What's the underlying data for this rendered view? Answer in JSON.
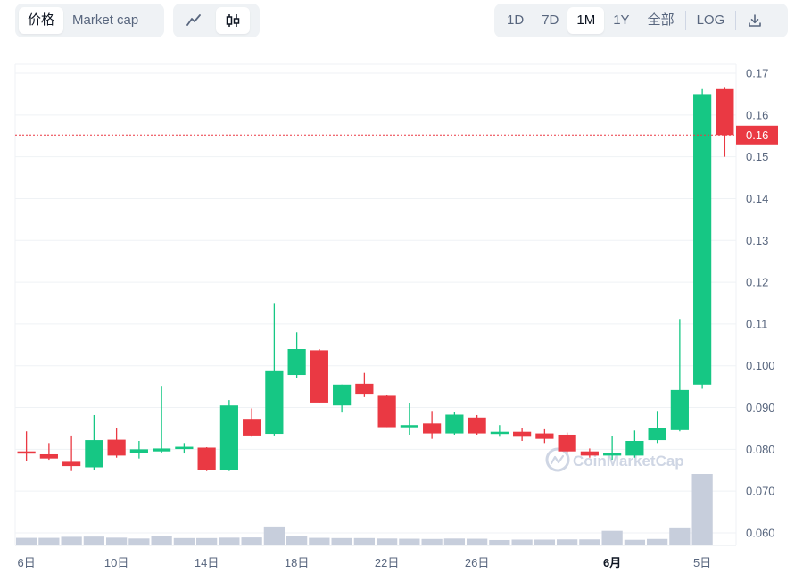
{
  "toolbar": {
    "left_tabs": [
      {
        "label": "价格",
        "active": true
      },
      {
        "label": "Market cap",
        "active": false
      }
    ],
    "chart_types": [
      {
        "icon": "line-chart-icon",
        "active": false
      },
      {
        "icon": "candlestick-icon",
        "active": true
      }
    ],
    "ranges": [
      {
        "label": "1D",
        "active": false
      },
      {
        "label": "7D",
        "active": false
      },
      {
        "label": "1M",
        "active": true
      },
      {
        "label": "1Y",
        "active": false
      },
      {
        "label": "全部",
        "active": false
      }
    ],
    "log_label": "LOG",
    "download_icon": "download-icon"
  },
  "watermark": "CoinMarketCap",
  "current_price_label": "0.16",
  "colors": {
    "up": "#16c784",
    "down": "#ea3943",
    "volume": "#c7cedc",
    "price_line": "#ea3943"
  },
  "chart_data": {
    "type": "candlestick",
    "y_ticks": [
      "0.060",
      "0.070",
      "0.080",
      "0.090",
      "0.100",
      "0.11",
      "0.12",
      "0.13",
      "0.14",
      "0.15",
      "0.16",
      "0.17"
    ],
    "y_tick_values": [
      0.06,
      0.07,
      0.08,
      0.09,
      0.1,
      0.11,
      0.12,
      0.13,
      0.14,
      0.15,
      0.16,
      0.17
    ],
    "ylim": [
      0.057,
      0.172
    ],
    "x_labels": [
      {
        "label": "6日",
        "index": 0,
        "bold": false
      },
      {
        "label": "10日",
        "index": 4,
        "bold": false
      },
      {
        "label": "14日",
        "index": 8,
        "bold": false
      },
      {
        "label": "18日",
        "index": 12,
        "bold": false
      },
      {
        "label": "22日",
        "index": 16,
        "bold": false
      },
      {
        "label": "26日",
        "index": 20,
        "bold": false
      },
      {
        "label": "6月",
        "index": 26,
        "bold": true
      },
      {
        "label": "5日",
        "index": 30,
        "bold": false
      }
    ],
    "current_price": 0.1552,
    "candles": [
      {
        "o": 0.0795,
        "h": 0.0843,
        "l": 0.0772,
        "c": 0.079,
        "v": 0.0155
      },
      {
        "o": 0.0788,
        "h": 0.0815,
        "l": 0.0775,
        "c": 0.0778,
        "v": 0.0155
      },
      {
        "o": 0.077,
        "h": 0.0833,
        "l": 0.0748,
        "c": 0.076,
        "v": 0.018
      },
      {
        "o": 0.0757,
        "h": 0.0882,
        "l": 0.075,
        "c": 0.0822,
        "v": 0.0185
      },
      {
        "o": 0.0823,
        "h": 0.085,
        "l": 0.078,
        "c": 0.0785,
        "v": 0.016
      },
      {
        "o": 0.0792,
        "h": 0.082,
        "l": 0.0778,
        "c": 0.08,
        "v": 0.014
      },
      {
        "o": 0.0795,
        "h": 0.0952,
        "l": 0.0792,
        "c": 0.0802,
        "v": 0.0195
      },
      {
        "o": 0.0802,
        "h": 0.0815,
        "l": 0.079,
        "c": 0.0806,
        "v": 0.015
      },
      {
        "o": 0.0804,
        "h": 0.0805,
        "l": 0.0748,
        "c": 0.075,
        "v": 0.015
      },
      {
        "o": 0.075,
        "h": 0.0918,
        "l": 0.0748,
        "c": 0.0905,
        "v": 0.016
      },
      {
        "o": 0.0873,
        "h": 0.0898,
        "l": 0.083,
        "c": 0.0833,
        "v": 0.0165
      },
      {
        "o": 0.0837,
        "h": 0.1148,
        "l": 0.0833,
        "c": 0.0987,
        "v": 0.042
      },
      {
        "o": 0.0978,
        "h": 0.108,
        "l": 0.097,
        "c": 0.104,
        "v": 0.02
      },
      {
        "o": 0.1037,
        "h": 0.104,
        "l": 0.091,
        "c": 0.0912,
        "v": 0.0155
      },
      {
        "o": 0.0905,
        "h": 0.0955,
        "l": 0.0888,
        "c": 0.0955,
        "v": 0.015
      },
      {
        "o": 0.0957,
        "h": 0.0983,
        "l": 0.0925,
        "c": 0.0933,
        "v": 0.015
      },
      {
        "o": 0.0928,
        "h": 0.093,
        "l": 0.0853,
        "c": 0.0853,
        "v": 0.014
      },
      {
        "o": 0.0856,
        "h": 0.091,
        "l": 0.0835,
        "c": 0.0858,
        "v": 0.0135
      },
      {
        "o": 0.0862,
        "h": 0.0892,
        "l": 0.0825,
        "c": 0.0838,
        "v": 0.013
      },
      {
        "o": 0.0838,
        "h": 0.089,
        "l": 0.0835,
        "c": 0.0883,
        "v": 0.014
      },
      {
        "o": 0.0876,
        "h": 0.0882,
        "l": 0.0835,
        "c": 0.0838,
        "v": 0.0135
      },
      {
        "o": 0.0838,
        "h": 0.0858,
        "l": 0.083,
        "c": 0.0842,
        "v": 0.0105
      },
      {
        "o": 0.0842,
        "h": 0.085,
        "l": 0.082,
        "c": 0.083,
        "v": 0.0115
      },
      {
        "o": 0.0838,
        "h": 0.0848,
        "l": 0.0815,
        "c": 0.0825,
        "v": 0.0115
      },
      {
        "o": 0.0835,
        "h": 0.084,
        "l": 0.0792,
        "c": 0.0795,
        "v": 0.012
      },
      {
        "o": 0.0795,
        "h": 0.0802,
        "l": 0.078,
        "c": 0.0785,
        "v": 0.012
      },
      {
        "o": 0.0785,
        "h": 0.0832,
        "l": 0.0775,
        "c": 0.0792,
        "v": 0.032
      },
      {
        "o": 0.0785,
        "h": 0.0845,
        "l": 0.078,
        "c": 0.082,
        "v": 0.011
      },
      {
        "o": 0.0822,
        "h": 0.0892,
        "l": 0.0815,
        "c": 0.0851,
        "v": 0.013
      },
      {
        "o": 0.0846,
        "h": 0.1112,
        "l": 0.0843,
        "c": 0.0942,
        "v": 0.04
      },
      {
        "o": 0.0955,
        "h": 0.1662,
        "l": 0.0945,
        "c": 0.165,
        "v": 0.165
      },
      {
        "o": 0.1662,
        "h": 0.1665,
        "l": 0.15,
        "c": 0.1552,
        "v": 0.0
      }
    ]
  }
}
